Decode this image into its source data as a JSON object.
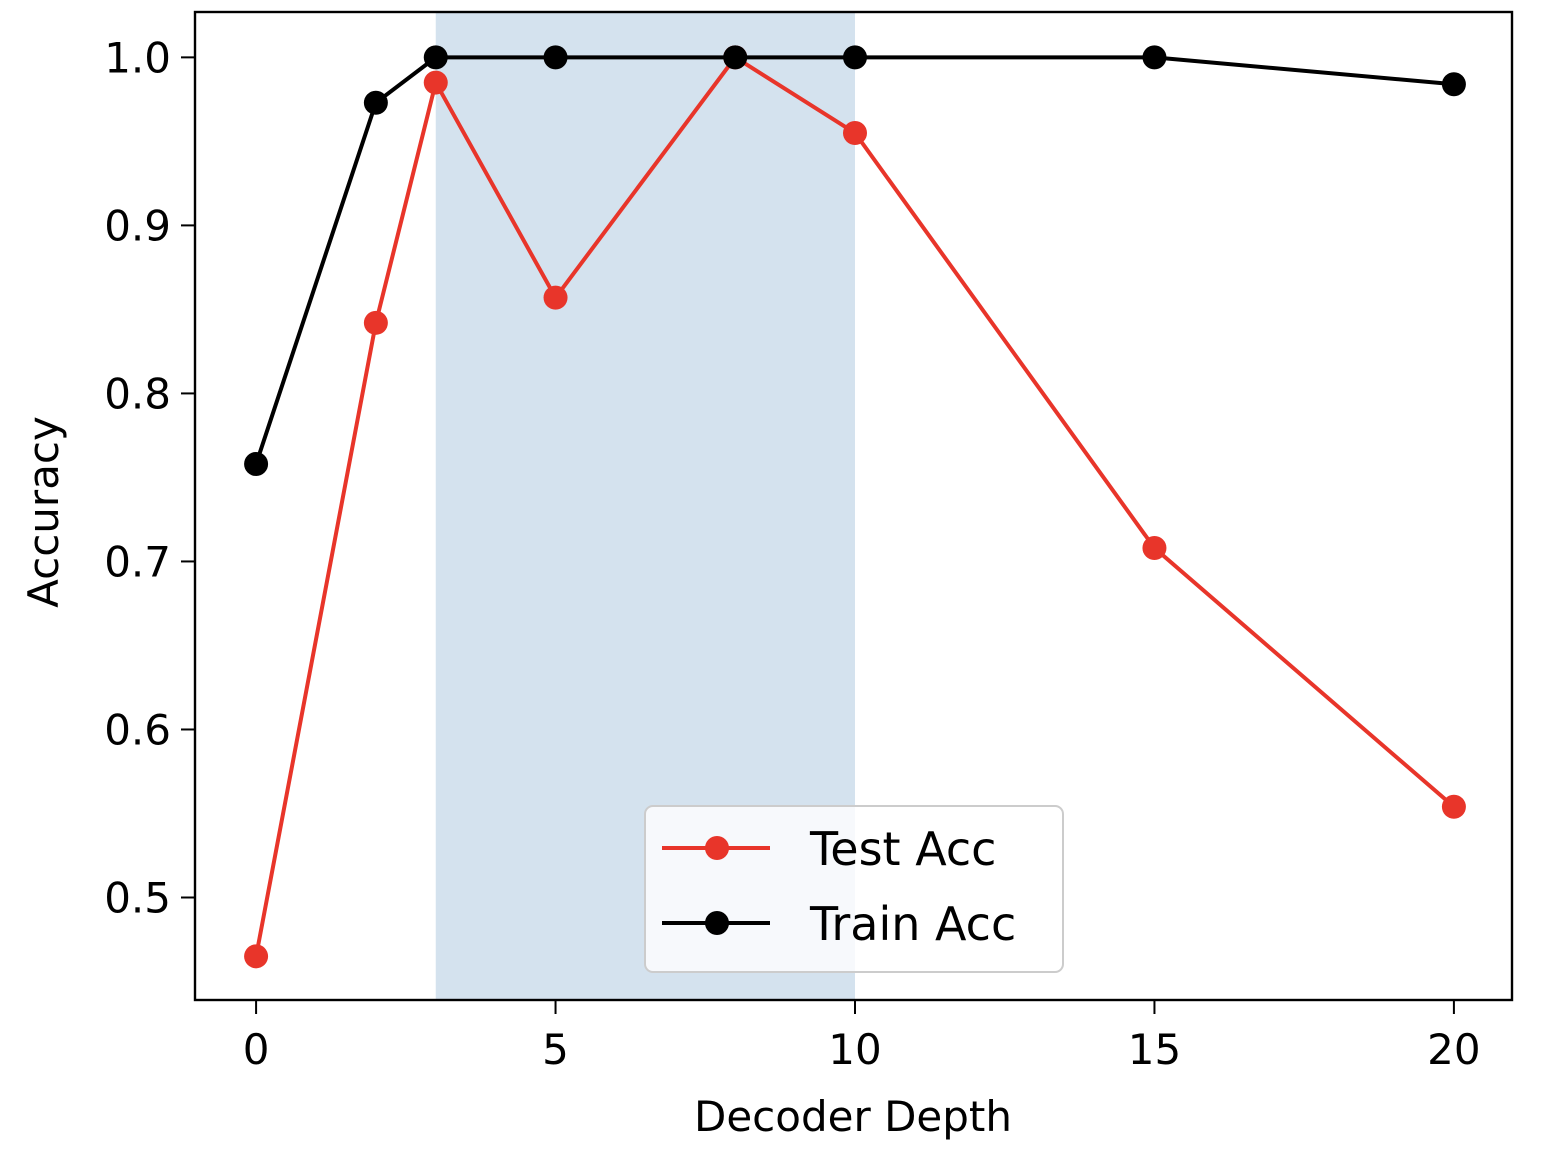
{
  "chart_data": {
    "type": "line",
    "title": "",
    "xlabel": "Decoder Depth",
    "ylabel": "Accuracy",
    "xlim": [
      -1.02,
      20.97
    ],
    "ylim": [
      0.439,
      1.027
    ],
    "xticks": [
      0,
      5,
      10,
      15,
      20
    ],
    "xtick_labels": [
      "0",
      "5",
      "10",
      "15",
      "20"
    ],
    "yticks": [
      0.5,
      0.6,
      0.7,
      0.8,
      0.9,
      1.0
    ],
    "ytick_labels": [
      "0.5",
      "0.6",
      "0.7",
      "0.8",
      "0.9",
      "1.0"
    ],
    "grid": false,
    "x": [
      0,
      2,
      3,
      5,
      8,
      10,
      15,
      20
    ],
    "series": [
      {
        "name": "Test Acc",
        "color": "#e8352a",
        "marker": "circle",
        "values": [
          0.465,
          0.842,
          0.985,
          0.857,
          1.0,
          0.955,
          0.708,
          0.554
        ]
      },
      {
        "name": "Train Acc",
        "color": "#000000",
        "marker": "circle",
        "values": [
          0.758,
          0.973,
          1.0,
          1.0,
          1.0,
          1.0,
          1.0,
          0.984
        ]
      }
    ],
    "shaded_region": {
      "x_start": 3,
      "x_end": 10,
      "color": "#d4e2ee"
    },
    "legend": {
      "position": "lower center",
      "entries": [
        "Test Acc",
        "Train Acc"
      ]
    }
  }
}
